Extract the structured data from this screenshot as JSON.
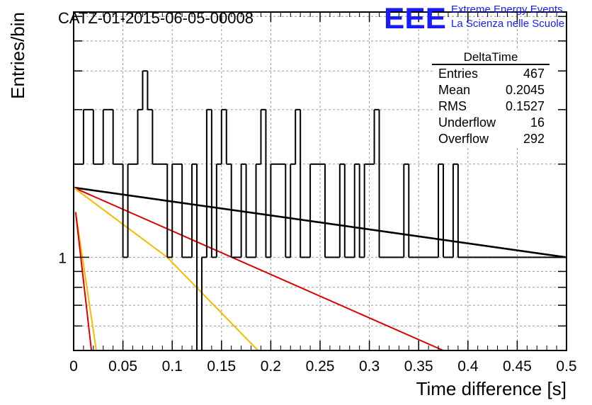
{
  "header": {
    "run_title": "CATZ-01-2015-06-05-00008",
    "logo_text": "EEE",
    "org_line1": "Extreme Energy Events",
    "org_line2": "La Scienza nelle Scuole"
  },
  "stats_box": {
    "name": "DeltaTime",
    "rows": [
      {
        "label": "Entries",
        "value": "467"
      },
      {
        "label": "Mean",
        "value": "0.2045"
      },
      {
        "label": "RMS",
        "value": "0.1527"
      },
      {
        "label": "Underflow",
        "value": "16"
      },
      {
        "label": "Overflow",
        "value": "292"
      }
    ]
  },
  "chart_data": {
    "type": "line",
    "subtype": "histogram-step",
    "xlabel": "Time difference [s]",
    "ylabel": "Entries/bin",
    "xlim": [
      0,
      0.5
    ],
    "ylim_log": [
      0.5,
      6.2
    ],
    "yscale": "log",
    "grid": true,
    "x_ticks": [
      "0",
      "0.05",
      "0.1",
      "0.15",
      "0.2",
      "0.25",
      "0.3",
      "0.35",
      "0.4",
      "0.45",
      "0.5"
    ],
    "y_tick_labels": [
      "1"
    ],
    "bin_width": 0.005,
    "histogram": {
      "name": "DeltaTime",
      "color": "#000000",
      "values": [
        2,
        2,
        3,
        3,
        2,
        2,
        3,
        3,
        2,
        2,
        1,
        2,
        2,
        3,
        4,
        3,
        2,
        2,
        2,
        1,
        2,
        2,
        1,
        1,
        2,
        0,
        1,
        3,
        1,
        2,
        3,
        2,
        1,
        1,
        2,
        1,
        1,
        2,
        3,
        1,
        2,
        2,
        2,
        1,
        2,
        3,
        1,
        1,
        2,
        2,
        2,
        1,
        1,
        1,
        2,
        1,
        1,
        2,
        1,
        2,
        2,
        3,
        1,
        1,
        1,
        1,
        1,
        2,
        1,
        1,
        1,
        1,
        1,
        1,
        2,
        1,
        1,
        2,
        1,
        1,
        1,
        1,
        1,
        1,
        1,
        1,
        1,
        1,
        1,
        1,
        1,
        1,
        1,
        1,
        1,
        1,
        1,
        1,
        1,
        1
      ]
    },
    "fits": [
      {
        "color": "#000000",
        "x": [
          0,
          0.5
        ],
        "y": [
          1.68,
          1.0
        ]
      },
      {
        "color": "#dd0000",
        "x": [
          0,
          0.375
        ],
        "y": [
          1.68,
          0.5
        ]
      },
      {
        "color": "#f5bb00",
        "x": [
          0,
          0.095,
          0.187
        ],
        "y": [
          1.68,
          1.0,
          0.5
        ]
      },
      {
        "color": "#f5bb00",
        "x": [
          0.002,
          0.023
        ],
        "y": [
          1.4,
          0.5
        ]
      },
      {
        "color": "#dd0000",
        "x": [
          0.002,
          0.018
        ],
        "y": [
          1.4,
          0.5
        ]
      }
    ]
  },
  "colors": {
    "logo": "#1a1aff",
    "frame": "#000000",
    "grid": "#9a9a9a"
  }
}
